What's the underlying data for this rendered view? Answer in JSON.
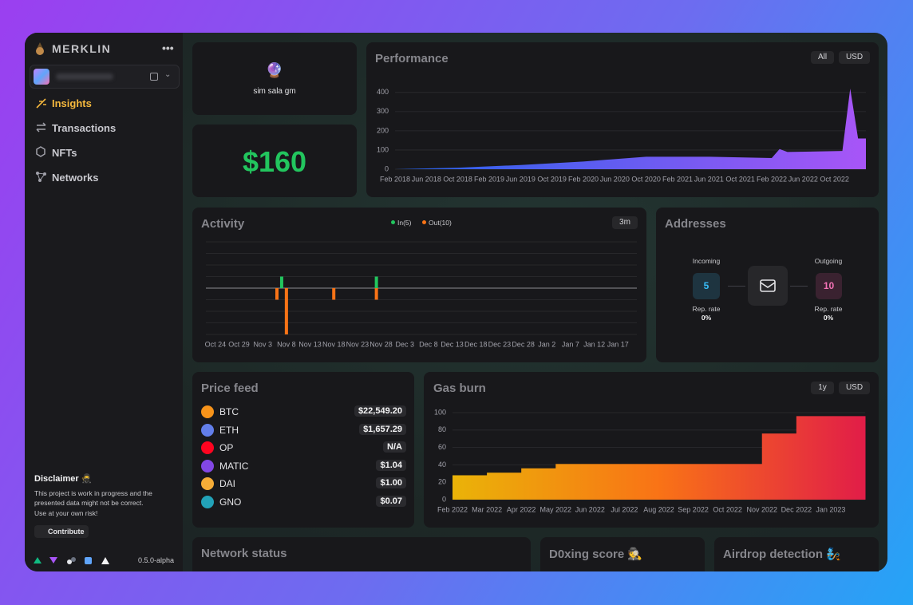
{
  "sidebar": {
    "brand": "MERKLIN",
    "nav": [
      "Insights",
      "Transactions",
      "NFTs",
      "Networks"
    ],
    "disclaimer": {
      "title": "Disclaimer 🥷",
      "text": "This project is work in progress and the presented data might not be correct.",
      "warning": "Use at your own risk!",
      "button": "Contribute"
    },
    "version": "0.5.0-alpha"
  },
  "greeting": {
    "emoji": "🔮",
    "text": "sim sala gm"
  },
  "balance": "$160",
  "performance": {
    "title": "Performance",
    "controls": [
      "All",
      "USD"
    ],
    "chart": {
      "type": "area",
      "gradient": [
        "#2563eb",
        "#a855f7"
      ],
      "x": [
        "2018-02",
        "2018-10",
        "2019-06",
        "2020-02",
        "2020-10",
        "2021-06",
        "2022-02",
        "2022-03",
        "2022-04",
        "2022-11",
        "2022-12",
        "2023-01",
        "2023-02"
      ],
      "values": [
        0,
        8,
        22,
        40,
        65,
        65,
        58,
        105,
        90,
        95,
        420,
        160,
        160
      ],
      "xlim": [
        "2018-02",
        "2023-02"
      ],
      "xticks": [
        {
          "value": "2018-02",
          "label": "Feb 2018"
        },
        {
          "value": "2018-06",
          "label": "Jun 2018"
        },
        {
          "value": "2018-10",
          "label": "Oct 2018"
        },
        {
          "value": "2019-02",
          "label": "Feb 2019"
        },
        {
          "value": "2019-06",
          "label": "Jun 2019"
        },
        {
          "value": "2019-10",
          "label": "Oct 2019"
        },
        {
          "value": "2020-02",
          "label": "Feb 2020"
        },
        {
          "value": "2020-06",
          "label": "Jun 2020"
        },
        {
          "value": "2020-10",
          "label": "Oct 2020"
        },
        {
          "value": "2021-02",
          "label": "Feb 2021"
        },
        {
          "value": "2021-06",
          "label": "Jun 2021"
        },
        {
          "value": "2021-10",
          "label": "Oct 2021"
        },
        {
          "value": "2022-02",
          "label": "Feb 2022"
        },
        {
          "value": "2022-06",
          "label": "Jun 2022"
        },
        {
          "value": "2022-10",
          "label": "Oct 2022"
        }
      ],
      "ylim": [
        0,
        420
      ],
      "yticks": [
        0,
        100,
        200,
        300,
        400
      ],
      "grid": true
    }
  },
  "activity": {
    "title": "Activity",
    "controls": [
      "3m"
    ],
    "chart": {
      "type": "bar",
      "series": [
        {
          "name": "In(5)",
          "color": "#22c55e",
          "x": [
            "11-07",
            "11-27"
          ],
          "values": [
            1,
            1
          ]
        },
        {
          "name": "Out(10)",
          "color": "#f97316",
          "x": [
            "11-06",
            "11-08",
            "11-18",
            "11-27"
          ],
          "values": [
            -1,
            -4,
            -1,
            -1
          ]
        }
      ],
      "xlim": [
        "10-22",
        "01-21"
      ],
      "xticks": [
        {
          "value": "10-24",
          "label": "Oct 24"
        },
        {
          "value": "10-29",
          "label": "Oct 29"
        },
        {
          "value": "11-03",
          "label": "Nov 3"
        },
        {
          "value": "11-08",
          "label": "Nov 8"
        },
        {
          "value": "11-13",
          "label": "Nov 13"
        },
        {
          "value": "11-18",
          "label": "Nov 18"
        },
        {
          "value": "11-23",
          "label": "Nov 23"
        },
        {
          "value": "11-28",
          "label": "Nov 28"
        },
        {
          "value": "12-03",
          "label": "Dec 3"
        },
        {
          "value": "12-08",
          "label": "Dec 8"
        },
        {
          "value": "12-13",
          "label": "Dec 13"
        },
        {
          "value": "12-18",
          "label": "Dec 18"
        },
        {
          "value": "12-23",
          "label": "Dec 23"
        },
        {
          "value": "12-28",
          "label": "Dec 28"
        },
        {
          "value": "01-02",
          "label": "Jan 2"
        },
        {
          "value": "01-07",
          "label": "Jan 7"
        },
        {
          "value": "01-12",
          "label": "Jan 12"
        },
        {
          "value": "01-17",
          "label": "Jan 17"
        }
      ],
      "ylim": [
        -4,
        4
      ],
      "yticks": [
        -4,
        -3,
        -2,
        -1,
        0,
        1,
        2,
        3,
        4
      ],
      "ytick_labels": false,
      "grid": true
    }
  },
  "addresses": {
    "title": "Addresses",
    "incoming": {
      "label": "Incoming",
      "count": 5,
      "rate_label": "Rep. rate",
      "rate": "0%"
    },
    "outgoing": {
      "label": "Outgoing",
      "count": 10,
      "rate_label": "Rep. rate",
      "rate": "0%"
    }
  },
  "price_feed": {
    "title": "Price feed",
    "rows": [
      {
        "symbol": "BTC",
        "price": "$22,549.20"
      },
      {
        "symbol": "ETH",
        "price": "$1,657.29"
      },
      {
        "symbol": "OP",
        "price": "N/A"
      },
      {
        "symbol": "MATIC",
        "price": "$1.04"
      },
      {
        "symbol": "DAI",
        "price": "$1.00"
      },
      {
        "symbol": "GNO",
        "price": "$0.07"
      }
    ]
  },
  "gas_burn": {
    "title": "Gas burn",
    "controls": [
      "1y",
      "USD"
    ],
    "chart": {
      "type": "area",
      "step": true,
      "gradient": [
        "#eab308",
        "#f97316",
        "#e11d48"
      ],
      "x": [
        "2022-02",
        "2022-03",
        "2022-04",
        "2022-05",
        "2022-11",
        "2022-12"
      ],
      "values": [
        28,
        31,
        36,
        41,
        76,
        96
      ],
      "xlim": [
        "2022-02",
        "2023-02"
      ],
      "xticks": [
        {
          "value": "2022-02",
          "label": "Feb 2022"
        },
        {
          "value": "2022-03",
          "label": "Mar 2022"
        },
        {
          "value": "2022-04",
          "label": "Apr 2022"
        },
        {
          "value": "2022-05",
          "label": "May 2022"
        },
        {
          "value": "2022-06",
          "label": "Jun 2022"
        },
        {
          "value": "2022-07",
          "label": "Jul 2022"
        },
        {
          "value": "2022-08",
          "label": "Aug 2022"
        },
        {
          "value": "2022-09",
          "label": "Sep 2022"
        },
        {
          "value": "2022-10",
          "label": "Oct 2022"
        },
        {
          "value": "2022-11",
          "label": "Nov 2022"
        },
        {
          "value": "2022-12",
          "label": "Dec 2022"
        },
        {
          "value": "2023-01",
          "label": "Jan 2023"
        }
      ],
      "ylim": [
        0,
        100
      ],
      "yticks": [
        0,
        20,
        40,
        60,
        80,
        100
      ],
      "grid": true
    }
  },
  "network_status": {
    "title": "Network status"
  },
  "doxing": {
    "title": "D0xing score 🕵️"
  },
  "airdrop": {
    "title": "Airdrop detection 🧞"
  }
}
